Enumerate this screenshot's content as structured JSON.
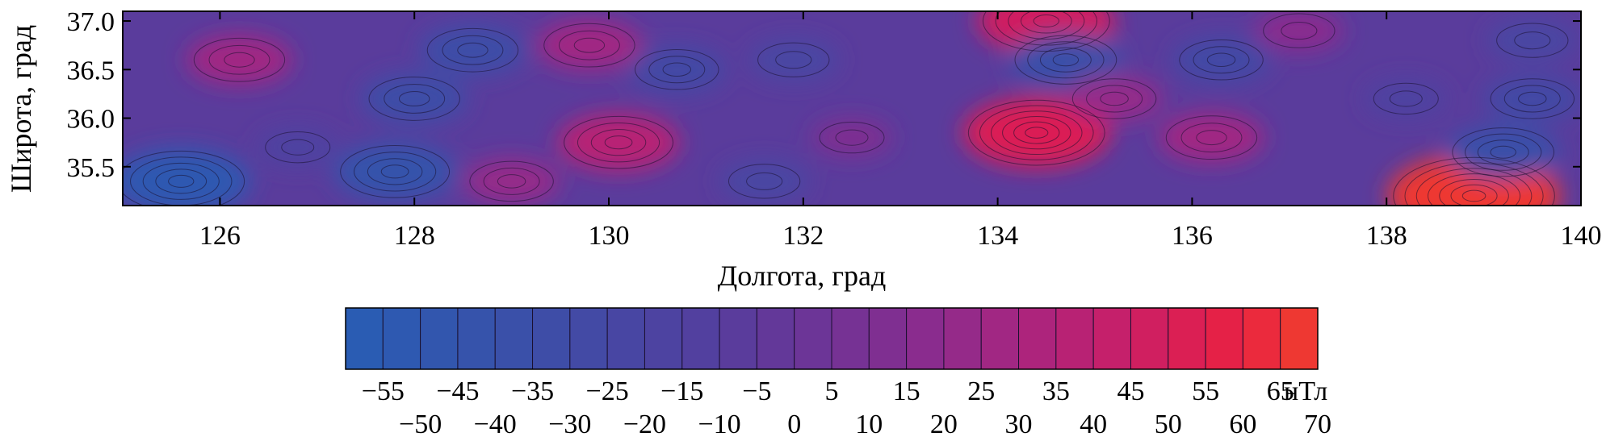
{
  "chart_data": {
    "type": "heatmap",
    "title": "",
    "xlabel": "Долгота, град",
    "ylabel": "Широта, град",
    "xlim": [
      125,
      140
    ],
    "ylim": [
      35.1,
      37.1
    ],
    "x_ticks": [
      126,
      128,
      130,
      132,
      134,
      136,
      138,
      140
    ],
    "x_tick_labels": [
      "126",
      "128",
      "130",
      "132",
      "134",
      "136",
      "138",
      "140"
    ],
    "y_ticks": [
      35.5,
      36.0,
      36.5,
      37.0
    ],
    "y_tick_labels": [
      "35.5",
      "36.0",
      "36.5",
      "37.0"
    ],
    "colorbar": {
      "unit": "нТл",
      "levels": [
        -55,
        -50,
        -45,
        -40,
        -35,
        -30,
        -25,
        -20,
        -15,
        -10,
        -5,
        0,
        5,
        10,
        15,
        20,
        25,
        30,
        35,
        40,
        45,
        50,
        55,
        60,
        65,
        70
      ],
      "labels_top": [
        "−55",
        "−45",
        "−35",
        "−25",
        "−15",
        "−5",
        "5",
        "15",
        "25",
        "35",
        "45",
        "55",
        "65"
      ],
      "labels_bottom": [
        "−50",
        "−40",
        "−30",
        "−20",
        "−10",
        "0",
        "10",
        "20",
        "30",
        "40",
        "50",
        "60",
        "70"
      ],
      "colors": [
        "#2a5cb3",
        "#2e59b1",
        "#3256ae",
        "#3653ab",
        "#3a50a9",
        "#3e4da7",
        "#434aa5",
        "#4846a3",
        "#4d43a1",
        "#52409f",
        "#5a3c9c",
        "#633899",
        "#6c3597",
        "#763294",
        "#7f2f91",
        "#8a2c8e",
        "#952a89",
        "#a12783",
        "#ad247c",
        "#b82274",
        "#c5206b",
        "#d01f60",
        "#db1f54",
        "#e52147",
        "#eb2a3d",
        "#ee3832"
      ]
    },
    "anomalies": [
      {
        "lon": 125.6,
        "lat": 35.35,
        "value": -50
      },
      {
        "lon": 126.2,
        "lat": 36.6,
        "value": 30
      },
      {
        "lon": 126.8,
        "lat": 35.7,
        "value": -15
      },
      {
        "lon": 127.8,
        "lat": 35.45,
        "value": -40
      },
      {
        "lon": 128.0,
        "lat": 36.2,
        "value": -30
      },
      {
        "lon": 128.6,
        "lat": 36.7,
        "value": -30
      },
      {
        "lon": 129.0,
        "lat": 35.35,
        "value": 25
      },
      {
        "lon": 129.8,
        "lat": 36.75,
        "value": 30
      },
      {
        "lon": 130.1,
        "lat": 35.75,
        "value": 40
      },
      {
        "lon": 130.7,
        "lat": 36.5,
        "value": -25
      },
      {
        "lon": 131.6,
        "lat": 35.35,
        "value": -20
      },
      {
        "lon": 131.9,
        "lat": 36.6,
        "value": -20
      },
      {
        "lon": 132.5,
        "lat": 35.8,
        "value": 15
      },
      {
        "lon": 134.4,
        "lat": 35.85,
        "value": 55
      },
      {
        "lon": 134.5,
        "lat": 37.0,
        "value": 50
      },
      {
        "lon": 134.7,
        "lat": 36.6,
        "value": -35
      },
      {
        "lon": 135.2,
        "lat": 36.2,
        "value": 25
      },
      {
        "lon": 136.2,
        "lat": 35.8,
        "value": 30
      },
      {
        "lon": 136.3,
        "lat": 36.6,
        "value": -25
      },
      {
        "lon": 137.1,
        "lat": 36.9,
        "value": 20
      },
      {
        "lon": 138.2,
        "lat": 36.2,
        "value": -15
      },
      {
        "lon": 138.9,
        "lat": 35.2,
        "value": 70
      },
      {
        "lon": 139.2,
        "lat": 35.65,
        "value": -35
      },
      {
        "lon": 139.5,
        "lat": 36.2,
        "value": -25
      },
      {
        "lon": 139.5,
        "lat": 36.8,
        "value": -20
      }
    ]
  }
}
